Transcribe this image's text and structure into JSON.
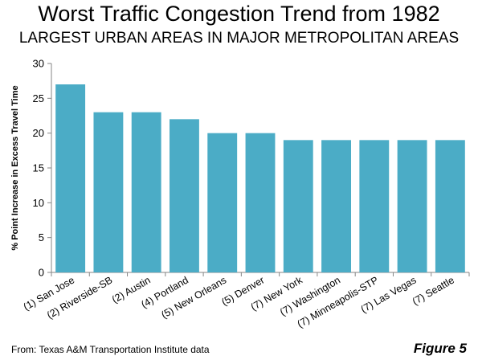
{
  "header": {
    "title": "Worst Traffic Congestion Trend from 1982",
    "subtitle": "LARGEST URBAN AREAS IN MAJOR METROPOLITAN AREAS"
  },
  "footer": {
    "source": "From: Texas A&M Transportation Institute data",
    "figure_label": "Figure 5"
  },
  "chart_data": {
    "type": "bar",
    "categories": [
      "(1) San Jose",
      "(2) Riverside-SB",
      "(2) Austin",
      "(4) Portland",
      "(5) New Orleans",
      "(5) Denver",
      "(7) New York",
      "(7) Washington",
      "(7) Minneapolis-STP",
      "(7) Las Vegas",
      "(7) Seattle"
    ],
    "values": [
      27,
      23,
      23,
      22,
      20,
      20,
      19,
      19,
      19,
      19,
      19
    ],
    "ylabel": "% Point Increase in Excess Travel Time",
    "ylim": [
      0,
      30
    ],
    "yticks": [
      0,
      5,
      10,
      15,
      20,
      25,
      30
    ],
    "bar_color": "#4bacc6",
    "axis_color": "#868686",
    "grid": false
  }
}
